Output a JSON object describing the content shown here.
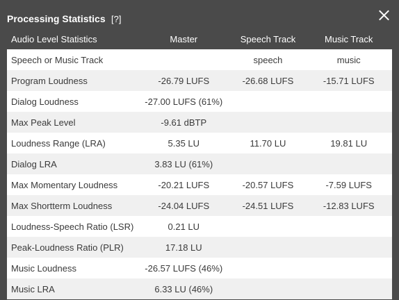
{
  "dialog": {
    "title": "Processing Statistics",
    "help_label": "[?]",
    "close_icon": "close-icon"
  },
  "table": {
    "columns": [
      "Audio Level Statistics",
      "Master",
      "Speech Track",
      "Music Track"
    ],
    "rows": [
      [
        "Speech or Music Track",
        "",
        "speech",
        "music"
      ],
      [
        "Program Loudness",
        "-26.79 LUFS",
        "-26.68 LUFS",
        "-15.71 LUFS"
      ],
      [
        "Dialog Loudness",
        "-27.00 LUFS (61%)",
        "",
        ""
      ],
      [
        "Max Peak Level",
        "-9.61 dBTP",
        "",
        ""
      ],
      [
        "Loudness Range (LRA)",
        "5.35 LU",
        "11.70 LU",
        "19.81 LU"
      ],
      [
        "Dialog LRA",
        "3.83 LU (61%)",
        "",
        ""
      ],
      [
        "Max Momentary Loudness",
        "-20.21 LUFS",
        "-20.57 LUFS",
        "-7.59 LUFS"
      ],
      [
        "Max Shortterm Loudness",
        "-24.04 LUFS",
        "-24.51 LUFS",
        "-12.83 LUFS"
      ],
      [
        "Loudness-Speech Ratio (LSR)",
        "0.21 LU",
        "",
        ""
      ],
      [
        "Peak-Loudness Ratio (PLR)",
        "17.18 LU",
        "",
        ""
      ],
      [
        "Music Loudness",
        "-26.57 LUFS (46%)",
        "",
        ""
      ],
      [
        "Music LRA",
        "6.33 LU (46%)",
        "",
        ""
      ]
    ]
  },
  "colors": {
    "background": "#4a4a4a",
    "row_odd": "#ffffff",
    "row_even": "#f0f0f0",
    "cell_text": "#3a3a3a"
  }
}
